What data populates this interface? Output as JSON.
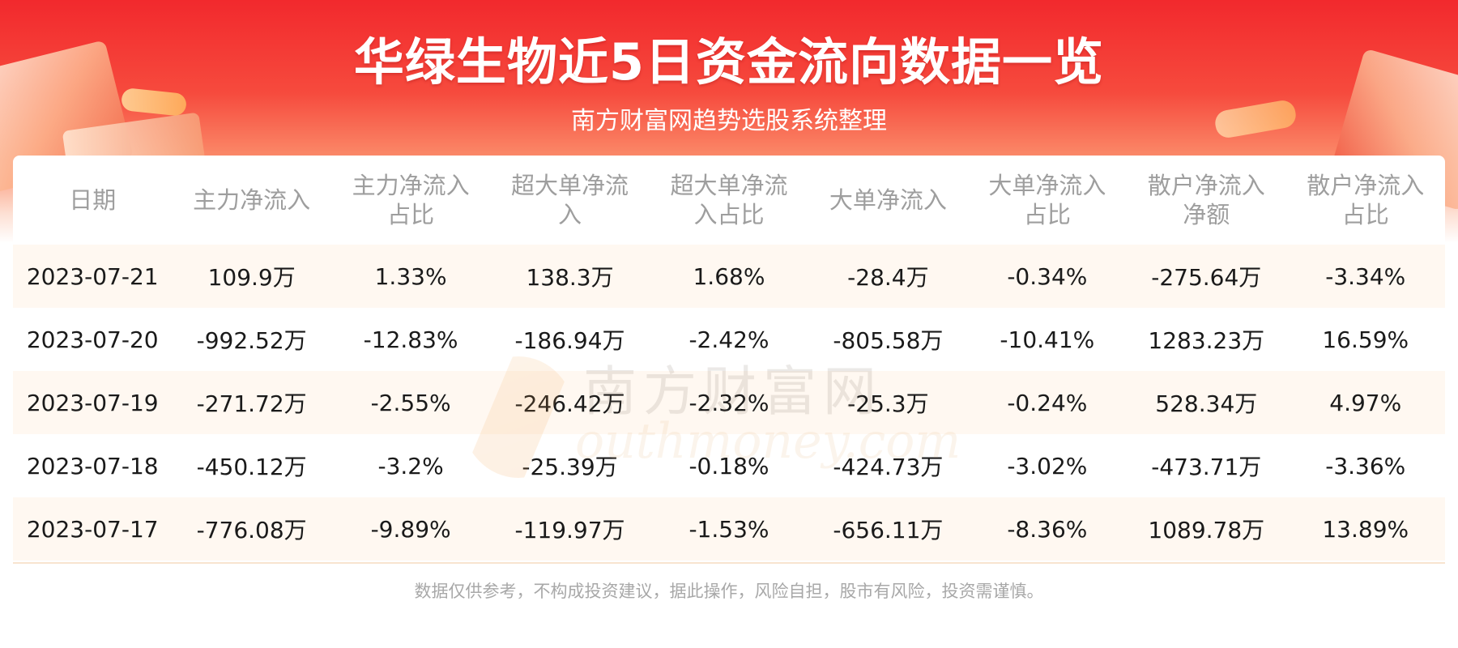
{
  "header": {
    "title": "华绿生物近5日资金流向数据一览",
    "subtitle": "南方财富网趋势选股系统整理"
  },
  "watermark": {
    "cn": "南方财富网",
    "en": "outhmoney.com"
  },
  "chart_data": {
    "type": "table",
    "columns": [
      [
        "日期"
      ],
      [
        "主力净流入"
      ],
      [
        "主力净流入",
        "占比"
      ],
      [
        "超大单净流",
        "入"
      ],
      [
        "超大单净流",
        "入占比"
      ],
      [
        "大单净流入"
      ],
      [
        "大单净流入",
        "占比"
      ],
      [
        "散户净流入",
        "净额"
      ],
      [
        "散户净流入",
        "占比"
      ]
    ],
    "rows": [
      [
        "2023-07-21",
        "109.9万",
        "1.33%",
        "138.3万",
        "1.68%",
        "-28.4万",
        "-0.34%",
        "-275.64万",
        "-3.34%"
      ],
      [
        "2023-07-20",
        "-992.52万",
        "-12.83%",
        "-186.94万",
        "-2.42%",
        "-805.58万",
        "-10.41%",
        "1283.23万",
        "16.59%"
      ],
      [
        "2023-07-19",
        "-271.72万",
        "-2.55%",
        "-246.42万",
        "-2.32%",
        "-25.3万",
        "-0.24%",
        "528.34万",
        "4.97%"
      ],
      [
        "2023-07-18",
        "-450.12万",
        "-3.2%",
        "-25.39万",
        "-0.18%",
        "-424.73万",
        "-3.02%",
        "-473.71万",
        "-3.36%"
      ],
      [
        "2023-07-17",
        "-776.08万",
        "-9.89%",
        "-119.97万",
        "-1.53%",
        "-656.11万",
        "-8.36%",
        "1089.78万",
        "13.89%"
      ]
    ]
  },
  "footer": {
    "disclaimer": "数据仅供参考，不构成投资建议，据此操作，风险自担，股市有风险，投资需谨慎。"
  },
  "colors": {
    "banner_red": "#f2292d",
    "row_stripe": "#fff8f1",
    "header_text": "#9e9e9e",
    "cell_text": "#1a1a1a"
  }
}
